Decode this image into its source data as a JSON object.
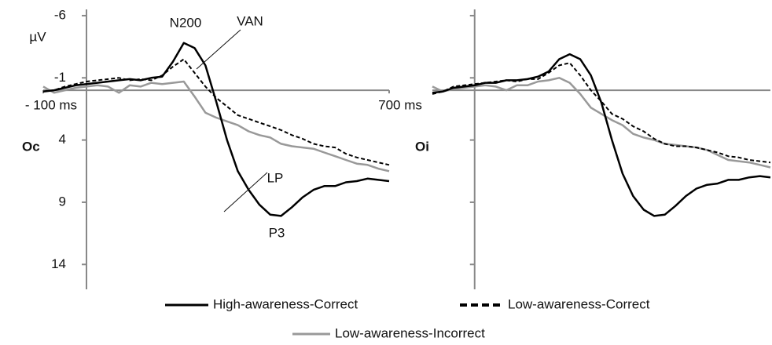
{
  "chart_data": [
    {
      "type": "line",
      "title": "Oc",
      "y_label": "µV",
      "invert_y": true,
      "annotations": [
        "N200",
        "VAN",
        "LP",
        "P3"
      ],
      "x": [
        -100,
        -75,
        -50,
        -25,
        0,
        25,
        50,
        75,
        100,
        125,
        150,
        175,
        200,
        225,
        250,
        275,
        300,
        325,
        350,
        375,
        400,
        425,
        450,
        475,
        500,
        525,
        550,
        575,
        600,
        625,
        650,
        675,
        700
      ],
      "xlim": [
        -100,
        700
      ],
      "xticks": [
        {
          "value": -100,
          "label": "- 100 ms"
        },
        {
          "value": 700,
          "label": "700 ms"
        }
      ],
      "ylim": [
        -6.5,
        16
      ],
      "yticks": [
        -6,
        -1,
        4,
        9,
        14
      ],
      "series": [
        {
          "name": "High-awareness-Correct",
          "color": "#000000",
          "style": "solid",
          "values": [
            0.1,
            0,
            -0.2,
            -0.4,
            -0.5,
            -0.6,
            -0.7,
            -0.8,
            -0.9,
            -0.8,
            -1.0,
            -1.1,
            -2.3,
            -3.8,
            -3.4,
            -2.0,
            0.9,
            4.0,
            6.5,
            8.0,
            9.2,
            10.0,
            10.1,
            9.4,
            8.6,
            8.0,
            7.7,
            7.7,
            7.4,
            7.3,
            7.1,
            7.2,
            7.3
          ]
        },
        {
          "name": "Low-awareness-Correct",
          "color": "#000000",
          "style": "dashed",
          "values": [
            0.1,
            0,
            -0.3,
            -0.5,
            -0.7,
            -0.8,
            -0.9,
            -1.0,
            -0.8,
            -0.9,
            -0.8,
            -1.2,
            -1.9,
            -2.5,
            -1.4,
            -0.3,
            0.6,
            1.3,
            2.0,
            2.3,
            2.6,
            2.9,
            3.2,
            3.6,
            3.9,
            4.3,
            4.5,
            4.6,
            5.1,
            5.4,
            5.6,
            5.8,
            6.0
          ]
        },
        {
          "name": "Low-awareness-Incorrect",
          "color": "#999999",
          "style": "solid",
          "values": [
            -0.3,
            0.2,
            0,
            -0.2,
            -0.3,
            -0.4,
            -0.3,
            0.2,
            -0.4,
            -0.3,
            -0.6,
            -0.5,
            -0.6,
            -0.7,
            0.5,
            1.8,
            2.2,
            2.5,
            2.8,
            3.3,
            3.6,
            3.8,
            4.3,
            4.5,
            4.6,
            4.7,
            5.0,
            5.3,
            5.6,
            5.9,
            6.0,
            6.3,
            6.5
          ]
        }
      ]
    },
    {
      "type": "line",
      "title": "Oi",
      "invert_y": true,
      "x": [
        -100,
        -75,
        -50,
        -25,
        0,
        25,
        50,
        75,
        100,
        125,
        150,
        175,
        200,
        225,
        250,
        275,
        300,
        325,
        350,
        375,
        400,
        425,
        450,
        475,
        500,
        525,
        550,
        575,
        600,
        625,
        650,
        675,
        700
      ],
      "xlim": [
        -100,
        700
      ],
      "ylim": [
        -6.5,
        16
      ],
      "series": [
        {
          "color": "#000000",
          "style": "solid",
          "values": [
            0.2,
            0.1,
            -0.2,
            -0.3,
            -0.4,
            -0.6,
            -0.6,
            -0.8,
            -0.8,
            -0.9,
            -1.1,
            -1.5,
            -2.5,
            -2.9,
            -2.5,
            -1.2,
            1.0,
            4.0,
            6.7,
            8.5,
            9.6,
            10.1,
            10.0,
            9.3,
            8.5,
            7.9,
            7.6,
            7.5,
            7.2,
            7.2,
            7.0,
            6.9,
            7.0
          ]
        },
        {
          "color": "#000000",
          "style": "dashed",
          "values": [
            0.3,
            0.1,
            -0.3,
            -0.4,
            -0.5,
            -0.6,
            -0.7,
            -0.8,
            -0.7,
            -0.9,
            -0.9,
            -1.4,
            -2.0,
            -2.2,
            -1.2,
            0.0,
            0.9,
            1.9,
            2.3,
            2.9,
            3.3,
            3.9,
            4.3,
            4.5,
            4.5,
            4.6,
            4.8,
            5.0,
            5.3,
            5.4,
            5.6,
            5.7,
            5.8
          ]
        },
        {
          "color": "#999999",
          "style": "solid",
          "values": [
            -0.3,
            0.1,
            -0.1,
            -0.2,
            -0.3,
            -0.4,
            -0.3,
            0.0,
            -0.4,
            -0.4,
            -0.7,
            -0.8,
            -1.0,
            -0.6,
            0.3,
            1.4,
            1.9,
            2.4,
            2.8,
            3.5,
            3.8,
            4.0,
            4.3,
            4.4,
            4.5,
            4.6,
            4.8,
            5.2,
            5.6,
            5.7,
            5.8,
            6.0,
            6.2
          ]
        }
      ]
    }
  ]
}
